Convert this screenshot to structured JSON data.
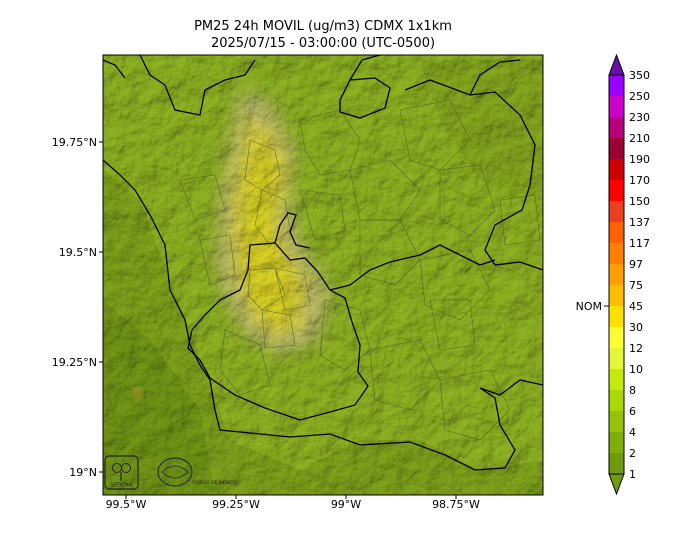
{
  "title": {
    "line1": "PM25 24h MOVIL (ug/m3) CDMX 1x1km",
    "line2": "2025/07/15 - 03:00:00 (UTC-0500)"
  },
  "map": {
    "lon_ticks": [
      "99.5°W",
      "99.25°W",
      "99°W",
      "98.75°W"
    ],
    "lat_ticks": [
      "19.75°N",
      "19.5°N",
      "19.25°N",
      "19°N"
    ],
    "logos": [
      {
        "name": "sedema-logo",
        "text": "SEDEMA"
      },
      {
        "name": "cdmx-logo",
        "text": "CIUDAD DE MÉXICO"
      }
    ]
  },
  "colorbar": {
    "marker_label": "NOM",
    "levels": [
      {
        "label": "1",
        "color": "#6e9a0c"
      },
      {
        "label": "2",
        "color": "#7fae0a"
      },
      {
        "label": "4",
        "color": "#92c308"
      },
      {
        "label": "6",
        "color": "#a8d806"
      },
      {
        "label": "8",
        "color": "#c2ea0a"
      },
      {
        "label": "10",
        "color": "#e4f53a"
      },
      {
        "label": "12",
        "color": "#ffff33"
      },
      {
        "label": "30",
        "color": "#ffe000"
      },
      {
        "label": "45",
        "color": "#ffbf00"
      },
      {
        "label": "75",
        "color": "#ffa000"
      },
      {
        "label": "97",
        "color": "#ff8000"
      },
      {
        "label": "117",
        "color": "#ff6000"
      },
      {
        "label": "137",
        "color": "#e84020"
      },
      {
        "label": "150",
        "color": "#ff0000"
      },
      {
        "label": "170",
        "color": "#cc0000"
      },
      {
        "label": "190",
        "color": "#990033"
      },
      {
        "label": "210",
        "color": "#b8007a"
      },
      {
        "label": "230",
        "color": "#cc00cc"
      },
      {
        "label": "250",
        "color": "#9900ff"
      },
      {
        "label": "350",
        "color": "#6a0dad"
      }
    ]
  }
}
